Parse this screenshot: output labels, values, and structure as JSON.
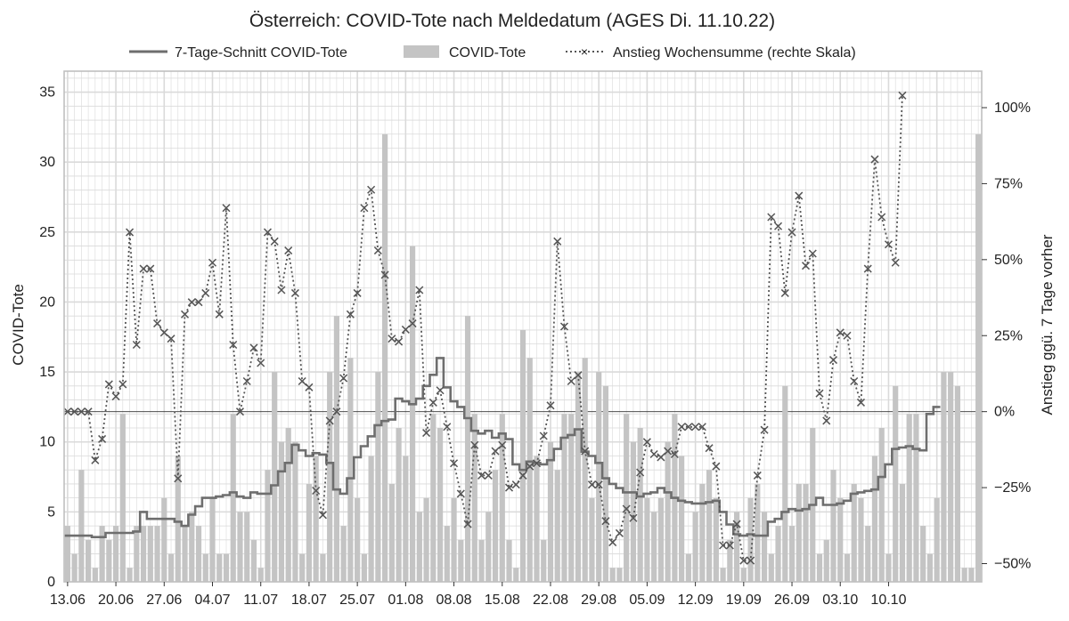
{
  "chart_data": {
    "type": "bar",
    "title": "Österreich: COVID-Tote nach Meldedatum (AGES Di. 11.10.22)",
    "ylabel": "COVID-Tote",
    "y2label": "Anstieg ggü. 7 Tage vorher",
    "ylim": [
      0,
      36.5
    ],
    "y2lim": [
      -0.56,
      1.12
    ],
    "yticks": [
      "0",
      "5",
      "10",
      "15",
      "20",
      "25",
      "30",
      "35"
    ],
    "y2ticks": [
      {
        "v": 1.0,
        "label": "100%"
      },
      {
        "v": 0.75,
        "label": "75%"
      },
      {
        "v": 0.5,
        "label": "50%"
      },
      {
        "v": 0.25,
        "label": "25%"
      },
      {
        "v": 0,
        "label": "0%"
      },
      {
        "v": -0.25,
        "label": "−25%"
      },
      {
        "v": -0.5,
        "label": "−50%"
      }
    ],
    "x_ticks": [
      "13.06",
      "20.06",
      "27.06",
      "04.07",
      "11.07",
      "18.07",
      "25.07",
      "01.08",
      "08.08",
      "15.08",
      "22.08",
      "29.08",
      "05.09",
      "12.09",
      "19.09",
      "26.09",
      "03.10",
      "10.10"
    ],
    "legend": {
      "placement": "top-center",
      "items": [
        "7-Tage-Schnitt COVID-Tote",
        "COVID-Tote",
        "Anstieg Wochensumme (rechte Skala)"
      ]
    },
    "grid": true,
    "colors": {
      "bars": "#c4c4c4",
      "avg": "#6e6e6e",
      "rise": "#555555",
      "grid": "#dadada",
      "frame": "#bfbfbf"
    },
    "series": [
      {
        "name": "COVID-Tote",
        "values": [
          4,
          2,
          8,
          3,
          1,
          4,
          3,
          4,
          12,
          1,
          4,
          4,
          4,
          4,
          6,
          2,
          9,
          4,
          5,
          4,
          2,
          6,
          2,
          2,
          12,
          5,
          5,
          3,
          1,
          8,
          15,
          10,
          11,
          10,
          2,
          7,
          9,
          2,
          15,
          19,
          4,
          16,
          6,
          2,
          9,
          15,
          32,
          7,
          11,
          9,
          24,
          5,
          6,
          12,
          11,
          4,
          6,
          3,
          19,
          12,
          3,
          5,
          8,
          12,
          3,
          1,
          18,
          16,
          9,
          3,
          10,
          8,
          12,
          12,
          15,
          16,
          6,
          15,
          14,
          1,
          1,
          12,
          10,
          11,
          6,
          5,
          6,
          10,
          12,
          9,
          2,
          5,
          7,
          8,
          6,
          1,
          3,
          5,
          1,
          6,
          7,
          5,
          2,
          4,
          14,
          4,
          7,
          7,
          11,
          2,
          3,
          8,
          6,
          2,
          7,
          6,
          4,
          9,
          11,
          2,
          14,
          7,
          12,
          12,
          4,
          2,
          6,
          15,
          15,
          14,
          1,
          1,
          32
        ]
      },
      {
        "name": "7-Tage-Schnitt COVID-Tote",
        "values": [
          3.3,
          3.3,
          3.3,
          3.3,
          3.2,
          3.2,
          3.5,
          3.5,
          3.5,
          3.5,
          3.6,
          5.0,
          4.5,
          4.5,
          4.5,
          4.5,
          4.3,
          4.0,
          4.8,
          5.4,
          6.0,
          6.0,
          6.1,
          6.2,
          6.4,
          6.1,
          6.0,
          6.4,
          6.3,
          6.3,
          6.9,
          7.9,
          8.5,
          9.8,
          9.4,
          9.0,
          9.2,
          9.1,
          8.5,
          6.6,
          6.3,
          7.4,
          8.9,
          9.7,
          10.4,
          11.2,
          11.5,
          11.6,
          13.1,
          12.9,
          12.7,
          13.1,
          14.0,
          14.8,
          16.0,
          13.9,
          12.9,
          12.5,
          11.7,
          10.8,
          10.6,
          10.8,
          10.3,
          10.6,
          10.2,
          8.4,
          8.0,
          8.6,
          8.5,
          8.4,
          8.7,
          9.5,
          10.3,
          10.5,
          10.9,
          9.3,
          9.0,
          8.5,
          7.4,
          7.0,
          6.7,
          6.4,
          6.4,
          6.1,
          6.3,
          6.4,
          6.7,
          6.4,
          6.0,
          5.8,
          5.7,
          5.6,
          5.6,
          5.7,
          5.8,
          5.0,
          4.1,
          3.4,
          3.3,
          3.4,
          3.3,
          3.3,
          4.3,
          4.5,
          5.0,
          5.2,
          5.1,
          5.2,
          5.5,
          6.0,
          5.5,
          5.5,
          5.6,
          5.8,
          6.3,
          6.4,
          6.5,
          6.6,
          7.5,
          8.4,
          9.5,
          9.6,
          9.7,
          9.5,
          9.4,
          12.0,
          12.5
        ]
      },
      {
        "name": "Anstieg Wochensumme (rechte Skala)",
        "values": [
          0,
          0,
          0,
          0,
          -0.16,
          -0.09,
          0.09,
          0.05,
          0.09,
          0.59,
          0.22,
          0.47,
          0.47,
          0.29,
          0.26,
          0.24,
          -0.22,
          0.32,
          0.36,
          0.36,
          0.39,
          0.49,
          0.32,
          0.67,
          0.22,
          0.0,
          0.1,
          0.21,
          0.16,
          0.59,
          0.56,
          0.4,
          0.53,
          0.39,
          0.1,
          0.08,
          -0.26,
          -0.34,
          -0.03,
          0.0,
          0.11,
          0.32,
          0.39,
          0.67,
          0.73,
          0.53,
          0.45,
          0.24,
          0.23,
          0.27,
          0.29,
          0.4,
          -0.07,
          0.03,
          0.07,
          -0.05,
          -0.17,
          -0.27,
          -0.37,
          -0.11,
          -0.21,
          -0.21,
          -0.13,
          -0.11,
          -0.25,
          -0.24,
          -0.21,
          -0.18,
          -0.17,
          -0.08,
          0.02,
          0.56,
          0.28,
          0.1,
          0.12,
          -0.13,
          -0.24,
          -0.24,
          -0.36,
          -0.43,
          -0.4,
          -0.32,
          -0.35,
          -0.2,
          -0.1,
          -0.14,
          -0.15,
          -0.13,
          -0.14,
          -0.05,
          -0.05,
          -0.05,
          -0.05,
          -0.12,
          -0.18,
          -0.44,
          -0.44,
          -0.37,
          -0.49,
          -0.49,
          -0.21,
          -0.06,
          0.64,
          0.61,
          0.39,
          0.59,
          0.71,
          0.48,
          0.52,
          0.06,
          -0.03,
          0.17,
          0.26,
          0.25,
          0.1,
          0.03,
          0.47,
          0.83,
          0.64,
          0.55,
          0.49,
          1.04
        ]
      }
    ]
  }
}
